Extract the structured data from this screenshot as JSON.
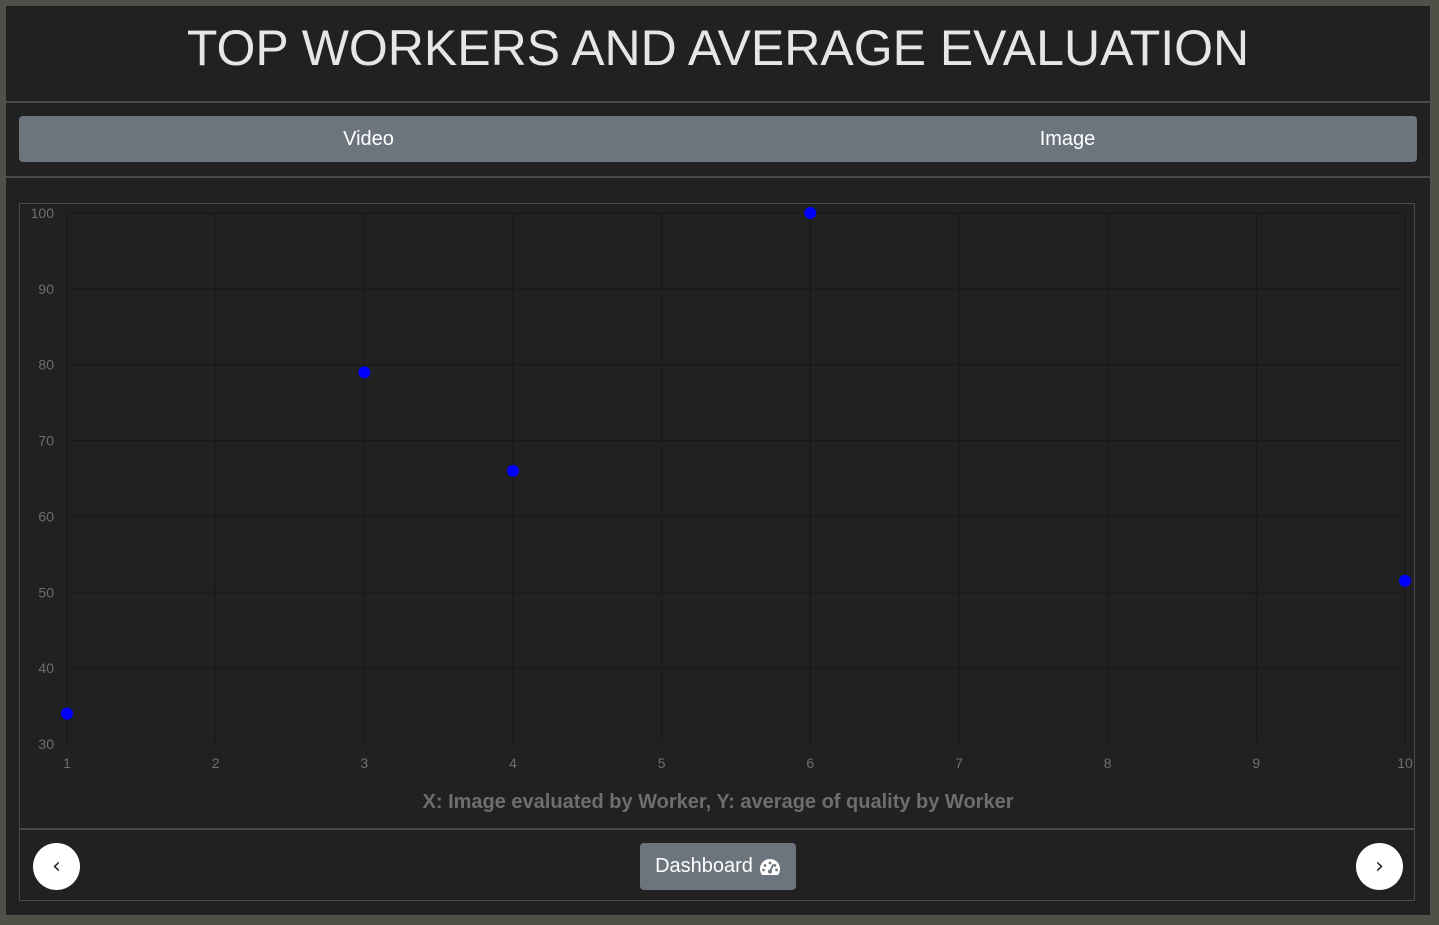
{
  "header": {
    "title": "TOP WORKERS AND AVERAGE EVALUATION"
  },
  "tabs": [
    {
      "label": "Video"
    },
    {
      "label": "Image"
    }
  ],
  "footer": {
    "prev_label": "‹",
    "next_label": "›",
    "dashboard_label": "Dashboard",
    "dashboard_icon": "tachometer-icon"
  },
  "colors": {
    "point": "#0000ff",
    "grid": "#181818",
    "tick": "#6e6e6e",
    "background": "#212121"
  },
  "chart_data": {
    "type": "scatter",
    "title": "",
    "xlabel": "X: Image evaluated by Worker, Y: average of quality by Worker",
    "ylabel": "",
    "xlim": [
      1,
      10
    ],
    "ylim": [
      30,
      100
    ],
    "xticks": [
      1,
      2,
      3,
      4,
      5,
      6,
      7,
      8,
      9,
      10
    ],
    "yticks": [
      30,
      40,
      50,
      60,
      70,
      80,
      90,
      100
    ],
    "grid": true,
    "legend": "none",
    "series": [
      {
        "points": [
          {
            "x": 1,
            "y": 34
          },
          {
            "x": 3,
            "y": 79
          },
          {
            "x": 4,
            "y": 66
          },
          {
            "x": 6,
            "y": 100
          },
          {
            "x": 10,
            "y": 51.5
          }
        ]
      }
    ]
  }
}
